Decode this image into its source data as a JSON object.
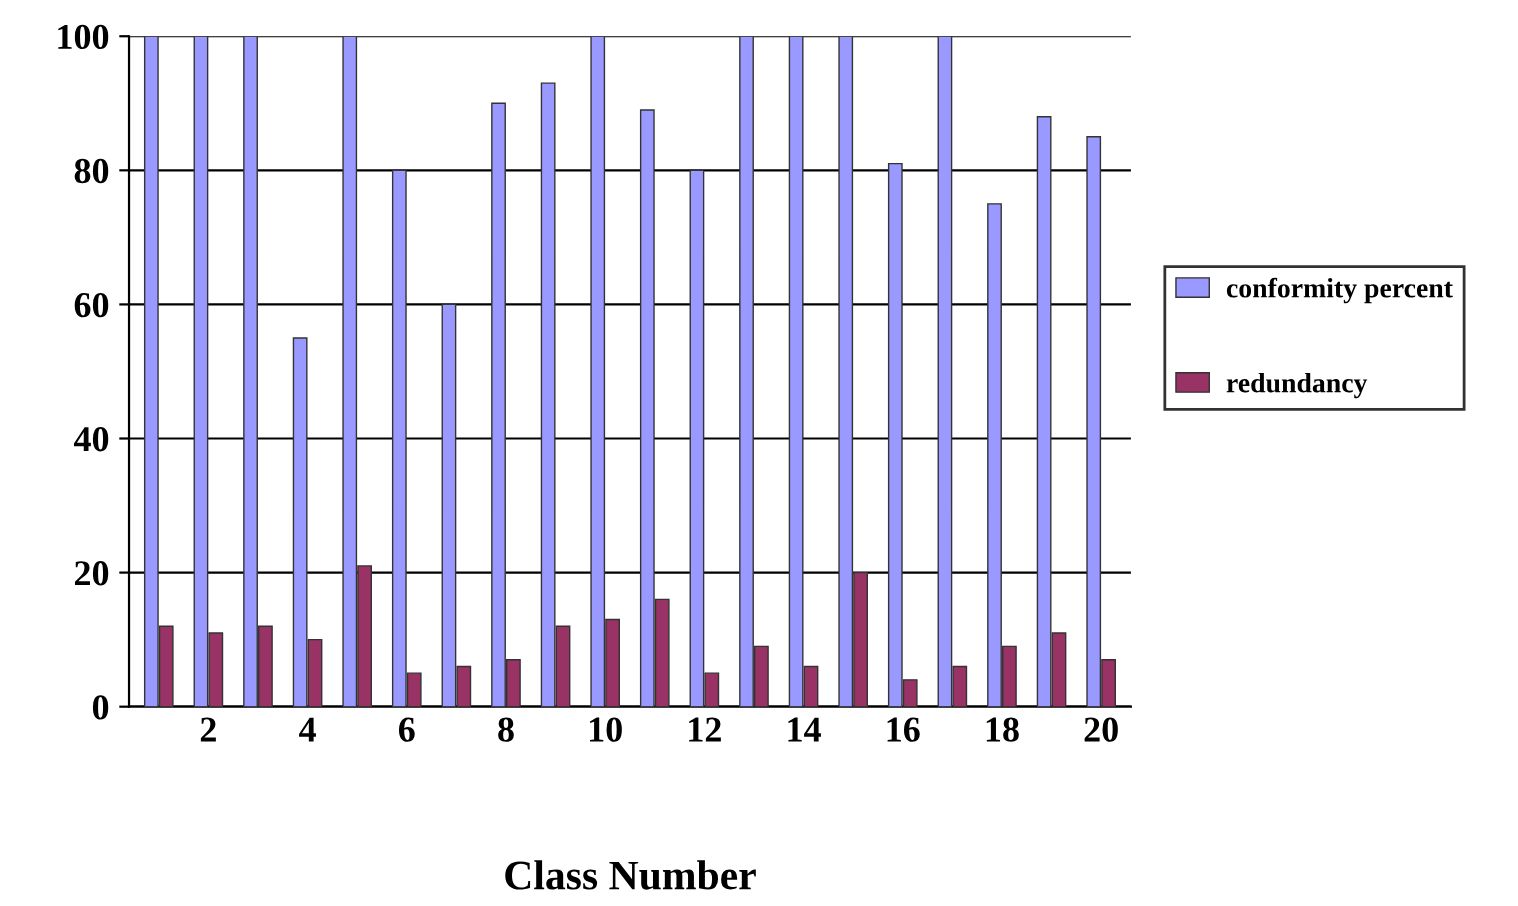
{
  "chart_data": {
    "type": "bar",
    "xlabel": "Class Number",
    "categories": [
      null,
      "2",
      null,
      "4",
      null,
      "6",
      null,
      "8",
      null,
      "10",
      null,
      "12",
      null,
      "14",
      null,
      "16",
      null,
      "18",
      null,
      "20"
    ],
    "series": [
      {
        "name": "conformity percent",
        "color": "#9999ff",
        "values": [
          100,
          100,
          100,
          55,
          100,
          80,
          60,
          90,
          93,
          100,
          89,
          80,
          100,
          100,
          100,
          81,
          100,
          75,
          88,
          85
        ]
      },
      {
        "name": "redundancy",
        "color": "#993366",
        "values": [
          12,
          11,
          12,
          10,
          21,
          5,
          6,
          7,
          12,
          13,
          16,
          5,
          9,
          6,
          20,
          4,
          6,
          9,
          11,
          7
        ]
      }
    ],
    "ylim": [
      0,
      100
    ],
    "yticks": [
      0,
      20,
      40,
      60,
      80,
      100
    ],
    "grid": "y",
    "legend": "right"
  }
}
